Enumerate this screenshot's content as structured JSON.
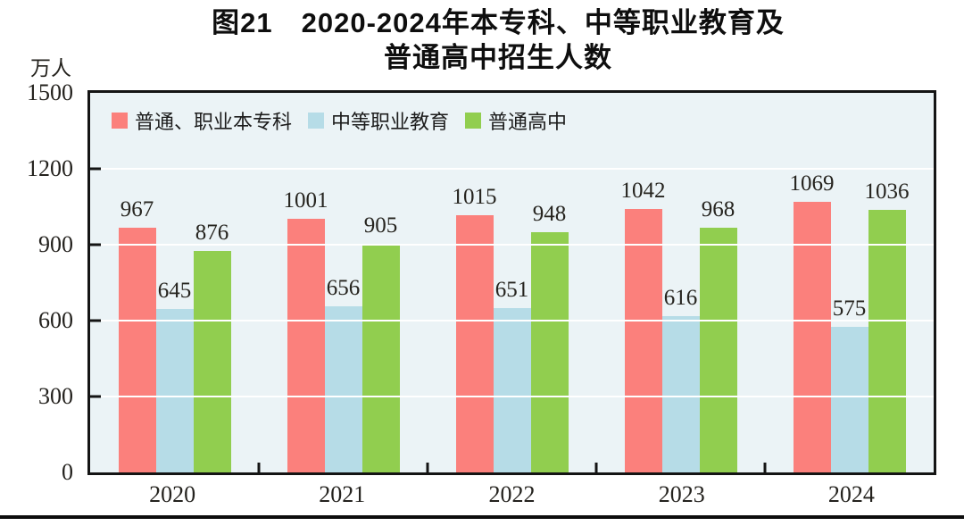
{
  "figure": {
    "title_line1": "图21　2020-2024年本专科、中等职业教育及",
    "title_line2": "普通高中招生人数",
    "unit_label": "万人"
  },
  "chart_data": {
    "type": "bar",
    "title": "图21 2020-2024年本专科、中等职业教育及普通高中招生人数",
    "ylabel": "万人",
    "xlabel": "",
    "categories": [
      "2020",
      "2021",
      "2022",
      "2023",
      "2024"
    ],
    "series": [
      {
        "name": "普通、职业本专科",
        "color": "#FB807C",
        "values": [
          967,
          1001,
          1015,
          1042,
          1069
        ]
      },
      {
        "name": "中等职业教育",
        "color": "#B6DCE7",
        "values": [
          645,
          656,
          651,
          616,
          575
        ]
      },
      {
        "name": "普通高中",
        "color": "#91CE4F",
        "values": [
          876,
          905,
          948,
          968,
          1036
        ]
      }
    ],
    "ylim": [
      0,
      1500
    ],
    "yticks": [
      0,
      300,
      600,
      900,
      1200,
      1500
    ],
    "grid": true,
    "gridline_color": "#FFFFFF",
    "plot_background": "#EBF3F6",
    "legend_position": "top-left-inside",
    "show_value_labels": true
  }
}
